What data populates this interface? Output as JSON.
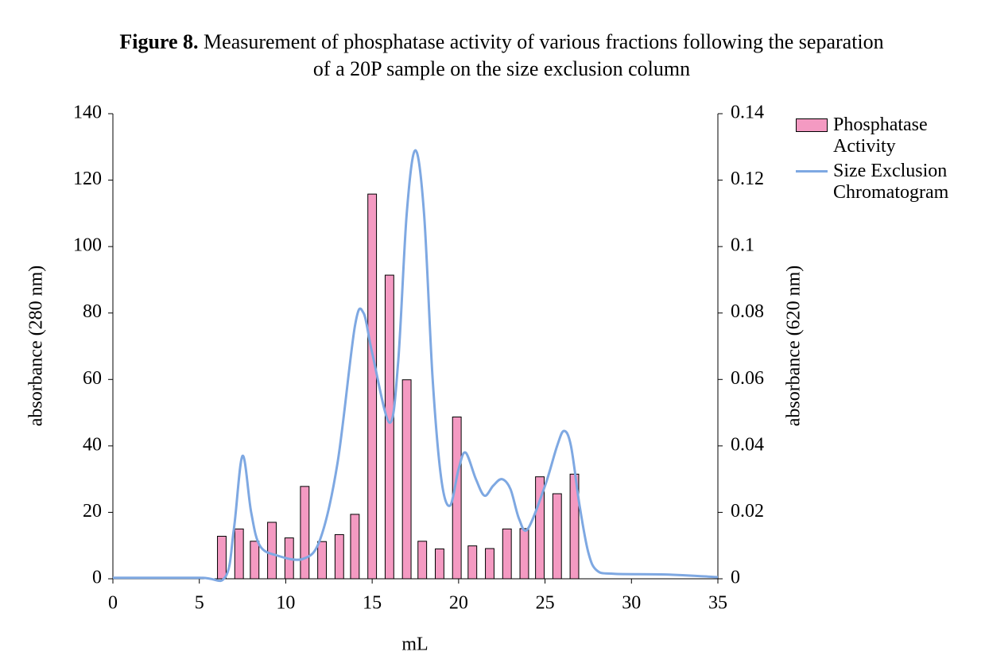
{
  "chart_data": {
    "type": "combo",
    "title_label": "Figure 8.",
    "title": "Measurement of phosphatase activity of various fractions following the separation of a 20P sample on the size exclusion column",
    "x_label": "mL",
    "y_label": "absorbance (280 nm)",
    "y2_label": "absorbance (620 nm)",
    "y_label_color": "#7ba7dd",
    "y2_label_color": "#f0a6c4",
    "xlim": [
      0,
      35
    ],
    "xticks": [
      0,
      5,
      10,
      15,
      20,
      25,
      30,
      35
    ],
    "ylim": [
      0,
      140
    ],
    "yticks": [
      0,
      20,
      40,
      60,
      80,
      100,
      120,
      140
    ],
    "y2lim": [
      0,
      0.14
    ],
    "y2ticks": [
      0,
      0.02,
      0.04,
      0.06,
      0.08,
      0.1,
      0.12,
      0.14
    ],
    "grid": false,
    "legend": "right",
    "series": [
      {
        "name": "Phosphatase Activity",
        "type": "bar",
        "axis": "y2",
        "color": "#f49ac2",
        "x": [
          6.3,
          7.3,
          8.2,
          9.2,
          10.2,
          11.1,
          12.1,
          13.1,
          14.0,
          15.0,
          16.0,
          17.0,
          17.9,
          18.9,
          19.9,
          20.8,
          21.8,
          22.8,
          23.8,
          24.7,
          25.7,
          26.7
        ],
        "values": [
          0.0128,
          0.015,
          0.0113,
          0.017,
          0.0123,
          0.0278,
          0.0112,
          0.0133,
          0.0194,
          0.1158,
          0.0914,
          0.0599,
          0.0113,
          0.009,
          0.0487,
          0.0099,
          0.0091,
          0.015,
          0.0151,
          0.0307,
          0.0256,
          0.0315
        ]
      },
      {
        "name": "Size Exclusion Chromatogram",
        "type": "line",
        "axis": "y",
        "color": "#7ea8e2",
        "x": [
          0,
          5,
          6.5,
          7,
          7.5,
          8,
          8.5,
          9.5,
          11,
          12,
          13,
          14,
          14.5,
          15,
          16,
          16.5,
          17,
          17.5,
          18,
          18.5,
          19,
          19.5,
          20,
          20.4,
          21,
          21.5,
          22,
          22.5,
          23,
          23.5,
          24,
          25,
          25.7,
          26.1,
          26.5,
          27,
          27.5,
          28,
          29,
          32,
          35
        ],
        "values": [
          0.3,
          0.3,
          0.5,
          15,
          37,
          20,
          10,
          7,
          6,
          12,
          35,
          76,
          80,
          68,
          47,
          65,
          110,
          129,
          110,
          60,
          30,
          22,
          33,
          38,
          30,
          25,
          28,
          30,
          27,
          18,
          15,
          28,
          40,
          44.5,
          40,
          22,
          8,
          2.5,
          1.5,
          1.3,
          0.5
        ]
      }
    ]
  }
}
